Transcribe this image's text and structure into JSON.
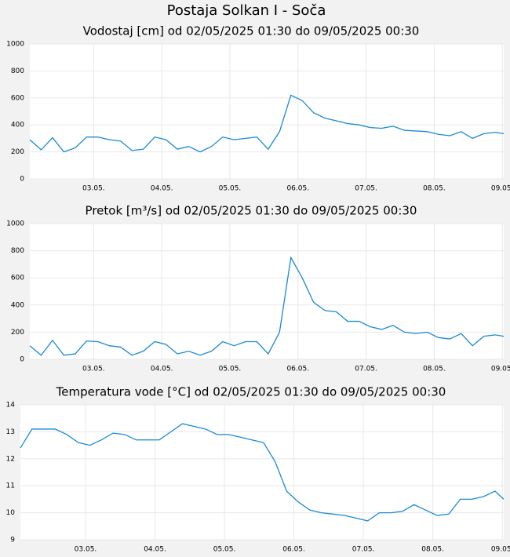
{
  "title": "Postaja Solkan I - Soča",
  "chart_data": [
    {
      "type": "line",
      "title": "Vodostaj [cm] od 02/05/2025 01:30 do 09/05/2025 00:30",
      "color": "#1a8ad4",
      "grid": true,
      "x": [
        "2025-05-02T01:30",
        "2025-05-02T05:30",
        "2025-05-02T09:30",
        "2025-05-02T13:30",
        "2025-05-02T17:30",
        "2025-05-02T21:30",
        "2025-05-03T01:30",
        "2025-05-03T05:30",
        "2025-05-03T09:30",
        "2025-05-03T13:30",
        "2025-05-03T17:30",
        "2025-05-03T21:30",
        "2025-05-04T01:30",
        "2025-05-04T05:30",
        "2025-05-04T09:30",
        "2025-05-04T13:30",
        "2025-05-04T17:30",
        "2025-05-04T21:30",
        "2025-05-05T01:30",
        "2025-05-05T05:30",
        "2025-05-05T09:30",
        "2025-05-05T13:30",
        "2025-05-05T17:30",
        "2025-05-05T21:30",
        "2025-05-06T01:30",
        "2025-05-06T05:30",
        "2025-05-06T09:30",
        "2025-05-06T13:30",
        "2025-05-06T17:30",
        "2025-05-06T21:30",
        "2025-05-07T01:30",
        "2025-05-07T05:30",
        "2025-05-07T09:30",
        "2025-05-07T13:30",
        "2025-05-07T17:30",
        "2025-05-07T21:30",
        "2025-05-08T01:30",
        "2025-05-08T05:30",
        "2025-05-08T09:30",
        "2025-05-08T13:30",
        "2025-05-08T17:30",
        "2025-05-08T21:30",
        "2025-05-09T00:30"
      ],
      "values": [
        290,
        215,
        305,
        200,
        230,
        310,
        310,
        290,
        280,
        210,
        220,
        310,
        290,
        220,
        240,
        200,
        240,
        310,
        290,
        300,
        310,
        220,
        350,
        620,
        580,
        490,
        450,
        430,
        410,
        400,
        380,
        375,
        390,
        360,
        355,
        350,
        330,
        320,
        350,
        300,
        335,
        345,
        335
      ],
      "xlim": [
        "2025-05-02T01:30",
        "2025-05-09T00:30"
      ],
      "xticks": [
        {
          "value": "2025-05-03T00:00",
          "label": "03.05."
        },
        {
          "value": "2025-05-04T00:00",
          "label": "04.05."
        },
        {
          "value": "2025-05-05T00:00",
          "label": "05.05."
        },
        {
          "value": "2025-05-06T00:00",
          "label": "06.05."
        },
        {
          "value": "2025-05-07T00:00",
          "label": "07.05."
        },
        {
          "value": "2025-05-08T00:00",
          "label": "08.05."
        },
        {
          "value": "2025-05-09T00:00",
          "label": "09.05."
        }
      ],
      "ylim": [
        0,
        1000
      ],
      "yticks": [
        0,
        200,
        400,
        600,
        800,
        1000
      ]
    },
    {
      "type": "line",
      "title": "Pretok [m³/s] od 02/05/2025 01:30 do 09/05/2025 00:30",
      "color": "#1a8ad4",
      "grid": true,
      "x": [
        "2025-05-02T01:30",
        "2025-05-02T05:30",
        "2025-05-02T09:30",
        "2025-05-02T13:30",
        "2025-05-02T17:30",
        "2025-05-02T21:30",
        "2025-05-03T01:30",
        "2025-05-03T05:30",
        "2025-05-03T09:30",
        "2025-05-03T13:30",
        "2025-05-03T17:30",
        "2025-05-03T21:30",
        "2025-05-04T01:30",
        "2025-05-04T05:30",
        "2025-05-04T09:30",
        "2025-05-04T13:30",
        "2025-05-04T17:30",
        "2025-05-04T21:30",
        "2025-05-05T01:30",
        "2025-05-05T05:30",
        "2025-05-05T09:30",
        "2025-05-05T13:30",
        "2025-05-05T17:30",
        "2025-05-05T21:30",
        "2025-05-06T01:30",
        "2025-05-06T05:30",
        "2025-05-06T09:30",
        "2025-05-06T13:30",
        "2025-05-06T17:30",
        "2025-05-06T21:30",
        "2025-05-07T01:30",
        "2025-05-07T05:30",
        "2025-05-07T09:30",
        "2025-05-07T13:30",
        "2025-05-07T17:30",
        "2025-05-07T21:30",
        "2025-05-08T01:30",
        "2025-05-08T05:30",
        "2025-05-08T09:30",
        "2025-05-08T13:30",
        "2025-05-08T17:30",
        "2025-05-08T21:30",
        "2025-05-09T00:30"
      ],
      "values": [
        100,
        30,
        140,
        30,
        40,
        135,
        130,
        100,
        90,
        30,
        60,
        130,
        110,
        40,
        60,
        30,
        60,
        130,
        100,
        130,
        130,
        40,
        200,
        750,
        600,
        420,
        360,
        350,
        280,
        280,
        240,
        220,
        250,
        200,
        190,
        200,
        160,
        150,
        190,
        100,
        170,
        180,
        170
      ],
      "xlim": [
        "2025-05-02T01:30",
        "2025-05-09T00:30"
      ],
      "xticks": [
        {
          "value": "2025-05-03T00:00",
          "label": "03.05."
        },
        {
          "value": "2025-05-04T00:00",
          "label": "04.05."
        },
        {
          "value": "2025-05-05T00:00",
          "label": "05.05."
        },
        {
          "value": "2025-05-06T00:00",
          "label": "06.05."
        },
        {
          "value": "2025-05-07T00:00",
          "label": "07.05."
        },
        {
          "value": "2025-05-08T00:00",
          "label": "08.05."
        },
        {
          "value": "2025-05-09T00:00",
          "label": "09.05."
        }
      ],
      "ylim": [
        0,
        1000
      ],
      "yticks": [
        0,
        200,
        400,
        600,
        800,
        1000
      ]
    },
    {
      "type": "line",
      "title": "Temperatura vode [°C] od 02/05/2025 01:30 do 09/05/2025 00:30",
      "color": "#1a8ad4",
      "grid": true,
      "x": [
        "2025-05-02T01:30",
        "2025-05-02T05:30",
        "2025-05-02T09:30",
        "2025-05-02T13:30",
        "2025-05-02T17:30",
        "2025-05-02T21:30",
        "2025-05-03T01:30",
        "2025-05-03T05:30",
        "2025-05-03T09:30",
        "2025-05-03T13:30",
        "2025-05-03T17:30",
        "2025-05-03T21:30",
        "2025-05-04T01:30",
        "2025-05-04T05:30",
        "2025-05-04T09:30",
        "2025-05-04T13:30",
        "2025-05-04T17:30",
        "2025-05-04T21:30",
        "2025-05-05T01:30",
        "2025-05-05T05:30",
        "2025-05-05T09:30",
        "2025-05-05T13:30",
        "2025-05-05T17:30",
        "2025-05-05T21:30",
        "2025-05-06T01:30",
        "2025-05-06T05:30",
        "2025-05-06T09:30",
        "2025-05-06T13:30",
        "2025-05-06T17:30",
        "2025-05-06T21:30",
        "2025-05-07T01:30",
        "2025-05-07T05:30",
        "2025-05-07T09:30",
        "2025-05-07T13:30",
        "2025-05-07T17:30",
        "2025-05-07T21:30",
        "2025-05-08T01:30",
        "2025-05-08T05:30",
        "2025-05-08T09:30",
        "2025-05-08T13:30",
        "2025-05-08T17:30",
        "2025-05-08T21:30",
        "2025-05-09T00:30"
      ],
      "values": [
        12.4,
        13.1,
        13.1,
        13.1,
        12.9,
        12.6,
        12.5,
        12.7,
        12.95,
        12.9,
        12.7,
        12.7,
        12.7,
        13.0,
        13.3,
        13.2,
        13.1,
        12.9,
        12.9,
        12.8,
        12.7,
        12.6,
        11.9,
        10.8,
        10.4,
        10.1,
        10.0,
        9.95,
        9.9,
        9.8,
        9.7,
        10.0,
        10.0,
        10.05,
        10.3,
        10.1,
        9.9,
        9.95,
        10.5,
        10.5,
        10.6,
        10.8,
        10.5
      ],
      "xlim": [
        "2025-05-02T01:30",
        "2025-05-09T00:30"
      ],
      "xticks": [
        {
          "value": "2025-05-03T00:00",
          "label": "03.05."
        },
        {
          "value": "2025-05-04T00:00",
          "label": "04.05."
        },
        {
          "value": "2025-05-05T00:00",
          "label": "05.05."
        },
        {
          "value": "2025-05-06T00:00",
          "label": "06.05."
        },
        {
          "value": "2025-05-07T00:00",
          "label": "07.05."
        },
        {
          "value": "2025-05-08T00:00",
          "label": "08.05."
        },
        {
          "value": "2025-05-09T00:00",
          "label": "09.05."
        }
      ],
      "ylim": [
        9,
        14
      ],
      "yticks": [
        9,
        10,
        11,
        12,
        13,
        14
      ]
    }
  ]
}
